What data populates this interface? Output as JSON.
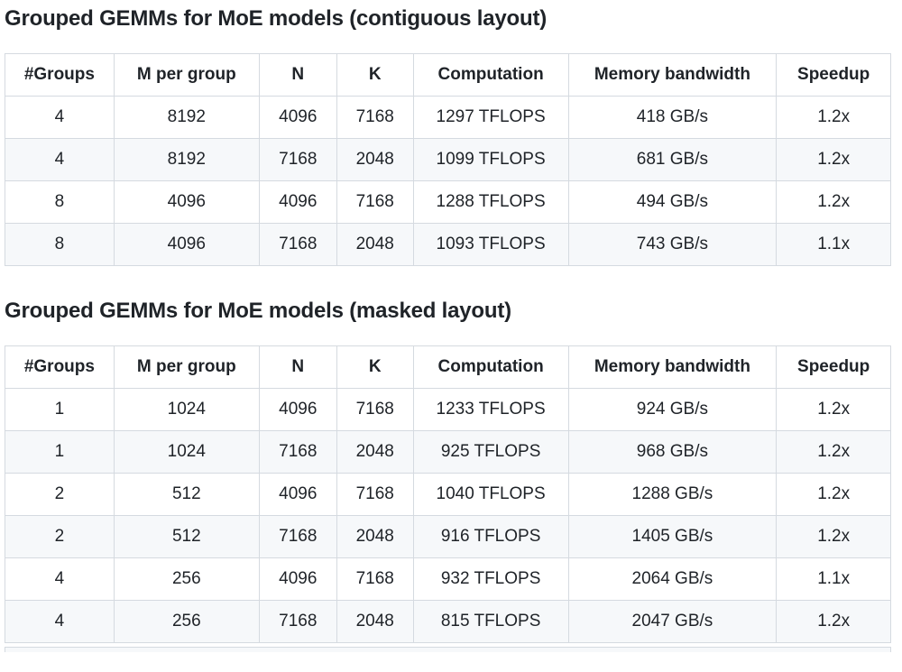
{
  "colors": {
    "text": "#1f2328",
    "border": "#d5dae0",
    "zebra_row": "#f6f8fa",
    "background": "#ffffff"
  },
  "sections": [
    {
      "heading": "Grouped GEMMs for MoE models (contiguous layout)",
      "table": {
        "columns": [
          "#Groups",
          "M per group",
          "N",
          "K",
          "Computation",
          "Memory bandwidth",
          "Speedup"
        ],
        "rows": [
          [
            "4",
            "8192",
            "4096",
            "7168",
            "1297 TFLOPS",
            "418 GB/s",
            "1.2x"
          ],
          [
            "4",
            "8192",
            "7168",
            "2048",
            "1099 TFLOPS",
            "681 GB/s",
            "1.2x"
          ],
          [
            "8",
            "4096",
            "4096",
            "7168",
            "1288 TFLOPS",
            "494 GB/s",
            "1.2x"
          ],
          [
            "8",
            "4096",
            "7168",
            "2048",
            "1093 TFLOPS",
            "743 GB/s",
            "1.1x"
          ]
        ]
      }
    },
    {
      "heading": "Grouped GEMMs for MoE models (masked layout)",
      "table": {
        "columns": [
          "#Groups",
          "M per group",
          "N",
          "K",
          "Computation",
          "Memory bandwidth",
          "Speedup"
        ],
        "rows": [
          [
            "1",
            "1024",
            "4096",
            "7168",
            "1233 TFLOPS",
            "924 GB/s",
            "1.2x"
          ],
          [
            "1",
            "1024",
            "7168",
            "2048",
            "925 TFLOPS",
            "968 GB/s",
            "1.2x"
          ],
          [
            "2",
            "512",
            "4096",
            "7168",
            "1040 TFLOPS",
            "1288 GB/s",
            "1.2x"
          ],
          [
            "2",
            "512",
            "7168",
            "2048",
            "916 TFLOPS",
            "1405 GB/s",
            "1.2x"
          ],
          [
            "4",
            "256",
            "4096",
            "7168",
            "932 TFLOPS",
            "2064 GB/s",
            "1.1x"
          ],
          [
            "4",
            "256",
            "7168",
            "2048",
            "815 TFLOPS",
            "2047 GB/s",
            "1.2x"
          ]
        ]
      }
    }
  ]
}
